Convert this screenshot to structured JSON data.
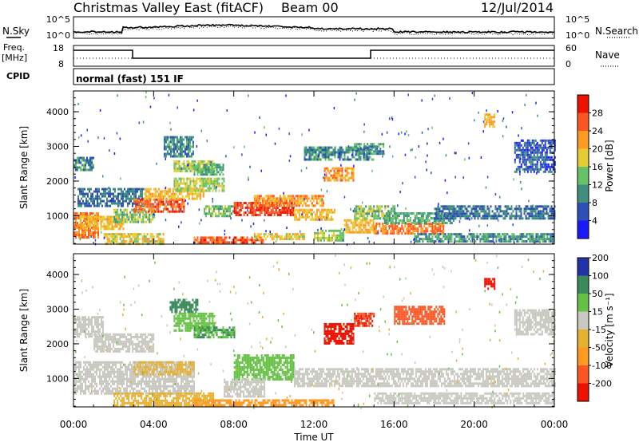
{
  "header": {
    "station": "Christmas Valley East (fitACF)",
    "beam": "Beam 00",
    "date": "12/Jul/2014"
  },
  "noise_panel": {
    "left_label": "N.Sky",
    "left_ticks": [
      "10^5",
      "10^0"
    ],
    "right_label": "N.Search",
    "right_ticks": [
      "10^5",
      "10^0"
    ]
  },
  "freq_panel": {
    "left_label_lines": [
      "Freq.",
      "[MHz]"
    ],
    "left_ticks": [
      "18",
      "8"
    ],
    "right_label": "Nave",
    "right_ticks": [
      "60",
      "0"
    ]
  },
  "cpid_panel": {
    "label": "CPID",
    "mode": "normal (fast) 151 IF"
  },
  "colors": {
    "power_scale": [
      "#1a1aff",
      "#2f4fb8",
      "#3f8f7f",
      "#66c266",
      "#e6cc33",
      "#ff9922",
      "#ff5522",
      "#ee1100"
    ],
    "velocity_scale": [
      "#ee1100",
      "#ff5522",
      "#ff9922",
      "#e6b030",
      "#c8c8c0",
      "#66c244",
      "#3a8a5a",
      "#2233aa"
    ]
  },
  "chart_data": [
    {
      "type": "heatmap",
      "name": "Power",
      "ylabel": "Slant Range [km]",
      "ylim": [
        180,
        4600
      ],
      "y_ticks": [
        1000,
        2000,
        3000,
        4000
      ],
      "xlim": [
        0,
        24
      ],
      "colorbar": {
        "label": "Power [dB]",
        "ticks": [
          "4",
          "8",
          "12",
          "16",
          "20",
          "24",
          "28"
        ],
        "range": [
          0,
          32
        ]
      },
      "regions": [
        {
          "t0": 0.0,
          "t1": 1.2,
          "r0": 400,
          "r1": 1100,
          "v": 24
        },
        {
          "t0": 0.3,
          "t1": 2.5,
          "r0": 600,
          "r1": 1000,
          "v": 20
        },
        {
          "t0": 0.0,
          "t1": 1.0,
          "r0": 2300,
          "r1": 2700,
          "v": 10
        },
        {
          "t0": 0.2,
          "t1": 3.5,
          "r0": 1300,
          "r1": 1800,
          "v": 8
        },
        {
          "t0": 1.5,
          "t1": 4.5,
          "r0": 200,
          "r1": 500,
          "v": 18
        },
        {
          "t0": 2.0,
          "t1": 4.0,
          "r0": 800,
          "r1": 1200,
          "v": 14
        },
        {
          "t0": 3.0,
          "t1": 5.5,
          "r0": 1100,
          "r1": 1500,
          "v": 26
        },
        {
          "t0": 3.5,
          "t1": 6.5,
          "r0": 1500,
          "r1": 1800,
          "v": 20
        },
        {
          "t0": 5.0,
          "t1": 7.5,
          "r0": 1700,
          "r1": 2100,
          "v": 16
        },
        {
          "t0": 4.5,
          "t1": 6.0,
          "r0": 2700,
          "r1": 3300,
          "v": 10
        },
        {
          "t0": 5.0,
          "t1": 7.0,
          "r0": 2300,
          "r1": 2600,
          "v": 16
        },
        {
          "t0": 6.0,
          "t1": 7.5,
          "r0": 2200,
          "r1": 2500,
          "v": 12
        },
        {
          "t0": 6.0,
          "t1": 9.5,
          "r0": 200,
          "r1": 400,
          "v": 26
        },
        {
          "t0": 6.5,
          "t1": 8.0,
          "r0": 1000,
          "r1": 1300,
          "v": 14
        },
        {
          "t0": 8.0,
          "t1": 11.0,
          "r0": 1000,
          "r1": 1400,
          "v": 28
        },
        {
          "t0": 9.0,
          "t1": 12.5,
          "r0": 1300,
          "r1": 1600,
          "v": 22
        },
        {
          "t0": 9.0,
          "t1": 11.5,
          "r0": 300,
          "r1": 500,
          "v": 18
        },
        {
          "t0": 11.0,
          "t1": 13.0,
          "r0": 900,
          "r1": 1200,
          "v": 20
        },
        {
          "t0": 12.0,
          "t1": 13.5,
          "r0": 300,
          "r1": 600,
          "v": 16
        },
        {
          "t0": 12.5,
          "t1": 14.0,
          "r0": 2000,
          "r1": 2400,
          "v": 22
        },
        {
          "t0": 11.5,
          "t1": 15.0,
          "r0": 2600,
          "r1": 3000,
          "v": 10
        },
        {
          "t0": 13.5,
          "t1": 15.0,
          "r0": 500,
          "r1": 900,
          "v": 20
        },
        {
          "t0": 15.0,
          "t1": 18.5,
          "r0": 500,
          "r1": 800,
          "v": 24
        },
        {
          "t0": 14.0,
          "t1": 16.0,
          "r0": 900,
          "r1": 1300,
          "v": 14
        },
        {
          "t0": 15.5,
          "t1": 19.0,
          "r0": 800,
          "r1": 1100,
          "v": 12
        },
        {
          "t0": 18.0,
          "t1": 24.0,
          "r0": 900,
          "r1": 1300,
          "v": 8
        },
        {
          "t0": 17.0,
          "t1": 24.0,
          "r0": 250,
          "r1": 500,
          "v": 10
        },
        {
          "t0": 20.5,
          "t1": 21.0,
          "r0": 3600,
          "r1": 3950,
          "v": 20
        },
        {
          "t0": 22.0,
          "t1": 24.0,
          "r0": 2300,
          "r1": 3200,
          "v": 6
        },
        {
          "t0": 14.0,
          "t1": 15.5,
          "r0": 2800,
          "r1": 3100,
          "v": 10
        }
      ]
    },
    {
      "type": "heatmap",
      "name": "Velocity",
      "ylabel": "Slant Range [km]",
      "xlabel": "Time UT",
      "ylim": [
        180,
        4600
      ],
      "y_ticks": [
        1000,
        2000,
        3000,
        4000
      ],
      "x_ticks": [
        "00:00",
        "04:00",
        "08:00",
        "12:00",
        "16:00",
        "20:00",
        "00:00"
      ],
      "xlim": [
        0,
        24
      ],
      "colorbar": {
        "label": "Velocity [m s⁻¹]",
        "ticks": [
          "-200",
          "-100",
          "-50",
          "-15",
          "15",
          "50",
          "100",
          "200"
        ],
        "range": [
          -250,
          250
        ]
      },
      "regions": [
        {
          "t0": 0.0,
          "t1": 6.0,
          "r0": 600,
          "r1": 1500,
          "v": 0
        },
        {
          "t0": 0.0,
          "t1": 1.5,
          "r0": 2200,
          "r1": 2800,
          "v": 0
        },
        {
          "t0": 1.0,
          "t1": 4.0,
          "r0": 1800,
          "r1": 2300,
          "v": 0
        },
        {
          "t0": 3.0,
          "t1": 6.0,
          "r0": 1100,
          "r1": 1500,
          "v": -20
        },
        {
          "t0": 2.0,
          "t1": 7.0,
          "r0": 200,
          "r1": 600,
          "v": -40
        },
        {
          "t0": 4.8,
          "t1": 6.2,
          "r0": 2900,
          "r1": 3300,
          "v": 60
        },
        {
          "t0": 5.0,
          "t1": 7.0,
          "r0": 2400,
          "r1": 2900,
          "v": 40
        },
        {
          "t0": 6.0,
          "t1": 8.0,
          "r0": 2200,
          "r1": 2500,
          "v": 50
        },
        {
          "t0": 8.0,
          "t1": 11.0,
          "r0": 1000,
          "r1": 1700,
          "v": 30
        },
        {
          "t0": 7.5,
          "t1": 9.5,
          "r0": 500,
          "r1": 1000,
          "v": 0
        },
        {
          "t0": 6.0,
          "t1": 13.0,
          "r0": 200,
          "r1": 400,
          "v": -60
        },
        {
          "t0": 11.0,
          "t1": 24.0,
          "r0": 800,
          "r1": 1300,
          "v": 0
        },
        {
          "t0": 12.5,
          "t1": 14.0,
          "r0": 2000,
          "r1": 2600,
          "v": -220
        },
        {
          "t0": 14.0,
          "t1": 15.0,
          "r0": 2500,
          "r1": 2900,
          "v": -200
        },
        {
          "t0": 15.0,
          "t1": 24.0,
          "r0": 300,
          "r1": 600,
          "v": 0
        },
        {
          "t0": 20.5,
          "t1": 21.0,
          "r0": 3600,
          "r1": 3900,
          "v": -220
        },
        {
          "t0": 22.0,
          "t1": 24.0,
          "r0": 2300,
          "r1": 3000,
          "v": 0
        },
        {
          "t0": 16.0,
          "t1": 18.5,
          "r0": 2600,
          "r1": 3100,
          "v": -150
        }
      ]
    }
  ]
}
